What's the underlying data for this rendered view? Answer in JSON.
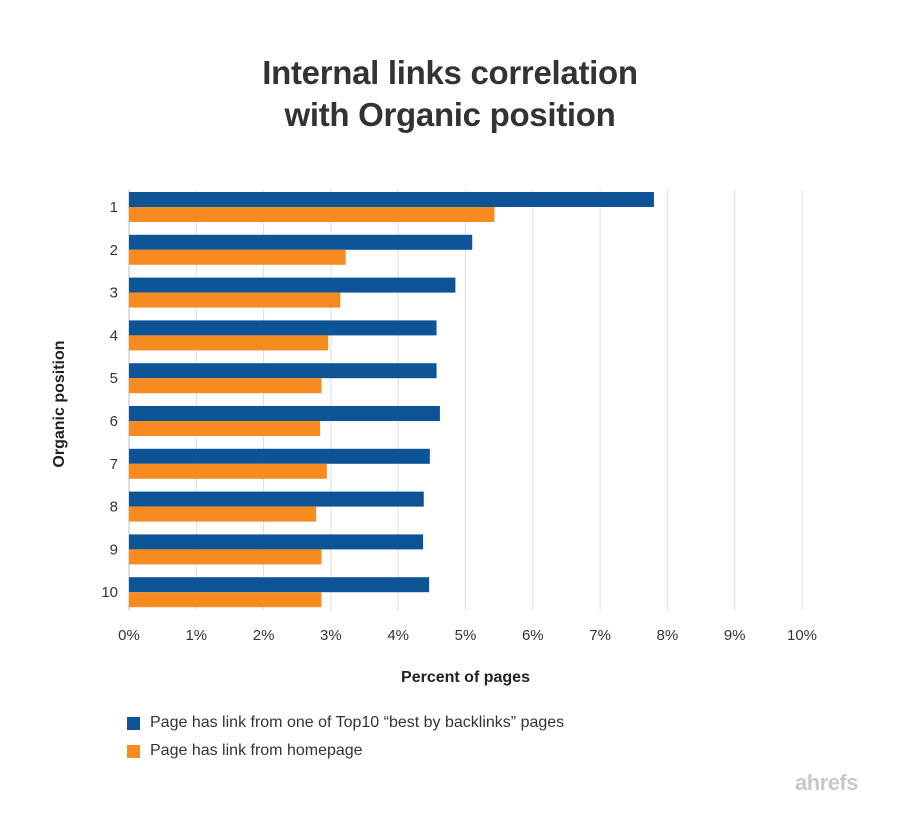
{
  "chart_data": {
    "type": "bar",
    "orientation": "horizontal",
    "title": "Internal links correlation with Organic position",
    "title_lines": [
      "Internal links correlation",
      "with Organic position"
    ],
    "xlabel": "Percent of pages",
    "ylabel": "Organic position",
    "categories": [
      "1",
      "2",
      "3",
      "4",
      "5",
      "6",
      "7",
      "8",
      "9",
      "10"
    ],
    "xlim": [
      0,
      10
    ],
    "xticks": [
      "0%",
      "1%",
      "2%",
      "3%",
      "4%",
      "5%",
      "6%",
      "7%",
      "8%",
      "9%",
      "10%"
    ],
    "grid": "vertical",
    "legend_position": "bottom-left",
    "series": [
      {
        "name": "Page has link from one of Top10 “best by backlinks” pages",
        "color": "#0d5497",
        "values": [
          7.8,
          5.1,
          4.85,
          4.57,
          4.57,
          4.62,
          4.47,
          4.38,
          4.37,
          4.46
        ]
      },
      {
        "name": "Page has link from homepage",
        "color": "#f68c1f",
        "values": [
          5.43,
          3.22,
          3.14,
          2.96,
          2.86,
          2.84,
          2.94,
          2.78,
          2.86,
          2.86
        ]
      }
    ]
  },
  "brand": "ahrefs"
}
